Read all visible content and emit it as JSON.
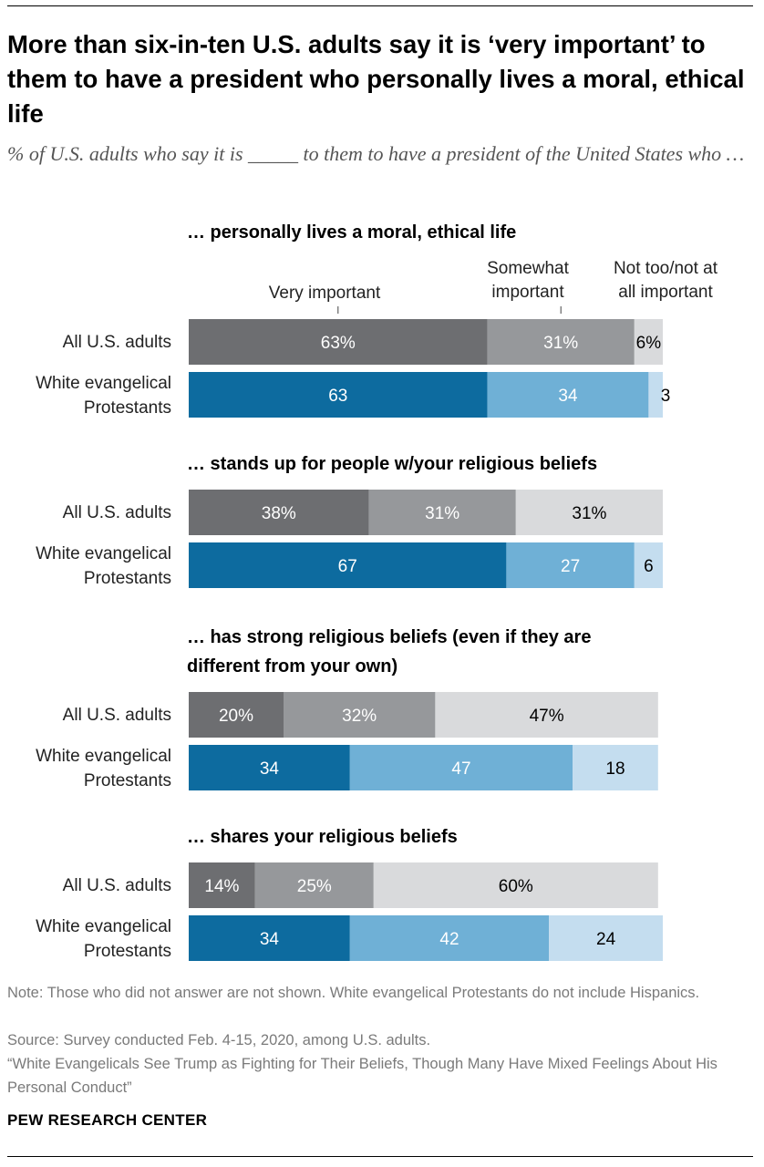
{
  "header": {
    "title": "More than six-in-ten U.S. adults say it is ‘very important’ to them to have a president who personally lives a moral, ethical life",
    "subtitle": "% of U.S. adults who say it is _____ to them to have a president of the United States who …"
  },
  "chart_data": {
    "type": "bar",
    "orientation": "horizontal",
    "stacked": true,
    "xlim": [
      0,
      100
    ],
    "grid": false,
    "legend": {
      "placement": "top",
      "entries": [
        "Very important",
        "Somewhat important",
        "Not too/not at all important"
      ]
    },
    "colors": {
      "all_adults": [
        "#6d6e71",
        "#96989b",
        "#d9dadc"
      ],
      "white_evangelical": [
        "#0d6b9f",
        "#6fb0d6",
        "#c4ddef"
      ],
      "label_light": "#ffffff",
      "label_dark": "#000000"
    },
    "panels": [
      {
        "heading": "… personally lives a moral, ethical life",
        "categories": [
          "All U.S. adults",
          "White evangelical Protestants"
        ],
        "series": [
          {
            "name": "Very important",
            "values": [
              63,
              63
            ],
            "labels": [
              "63%",
              "63"
            ]
          },
          {
            "name": "Somewhat important",
            "values": [
              31,
              34
            ],
            "labels": [
              "31%",
              "34"
            ]
          },
          {
            "name": "Not too/not at all important",
            "values": [
              6,
              3
            ],
            "labels": [
              "6%",
              "3"
            ]
          }
        ]
      },
      {
        "heading": "… stands up for people w/your religious beliefs",
        "categories": [
          "All U.S. adults",
          "White evangelical Protestants"
        ],
        "series": [
          {
            "name": "Very important",
            "values": [
              38,
              67
            ],
            "labels": [
              "38%",
              "67"
            ]
          },
          {
            "name": "Somewhat important",
            "values": [
              31,
              27
            ],
            "labels": [
              "31%",
              "27"
            ]
          },
          {
            "name": "Not too/not at all important",
            "values": [
              31,
              6
            ],
            "labels": [
              "31%",
              "6"
            ]
          }
        ]
      },
      {
        "heading": "… has strong religious beliefs (even if they are different from your own)",
        "categories": [
          "All U.S. adults",
          "White evangelical Protestants"
        ],
        "series": [
          {
            "name": "Very important",
            "values": [
              20,
              34
            ],
            "labels": [
              "20%",
              "34"
            ]
          },
          {
            "name": "Somewhat important",
            "values": [
              32,
              47
            ],
            "labels": [
              "32%",
              "47"
            ]
          },
          {
            "name": "Not too/not at all important",
            "values": [
              47,
              18
            ],
            "labels": [
              "47%",
              "18"
            ]
          }
        ]
      },
      {
        "heading": "… shares your religious beliefs",
        "categories": [
          "All U.S. adults",
          "White evangelical Protestants"
        ],
        "series": [
          {
            "name": "Very important",
            "values": [
              14,
              34
            ],
            "labels": [
              "14%",
              "34"
            ]
          },
          {
            "name": "Somewhat important",
            "values": [
              25,
              42
            ],
            "labels": [
              "25%",
              "42"
            ]
          },
          {
            "name": "Not too/not at all important",
            "values": [
              60,
              24
            ],
            "labels": [
              "60%",
              "24"
            ]
          }
        ]
      }
    ]
  },
  "footer": {
    "note": "Note: Those who did not answer are not shown. White evangelical Protestants do not include Hispanics.",
    "source": "Source: Survey conducted Feb. 4-15, 2020, among U.S. adults.",
    "report": "“White Evangelicals See Trump as Fighting for Their Beliefs, Though Many Have Mixed Feelings About His Personal Conduct”",
    "brand": "PEW RESEARCH CENTER"
  }
}
